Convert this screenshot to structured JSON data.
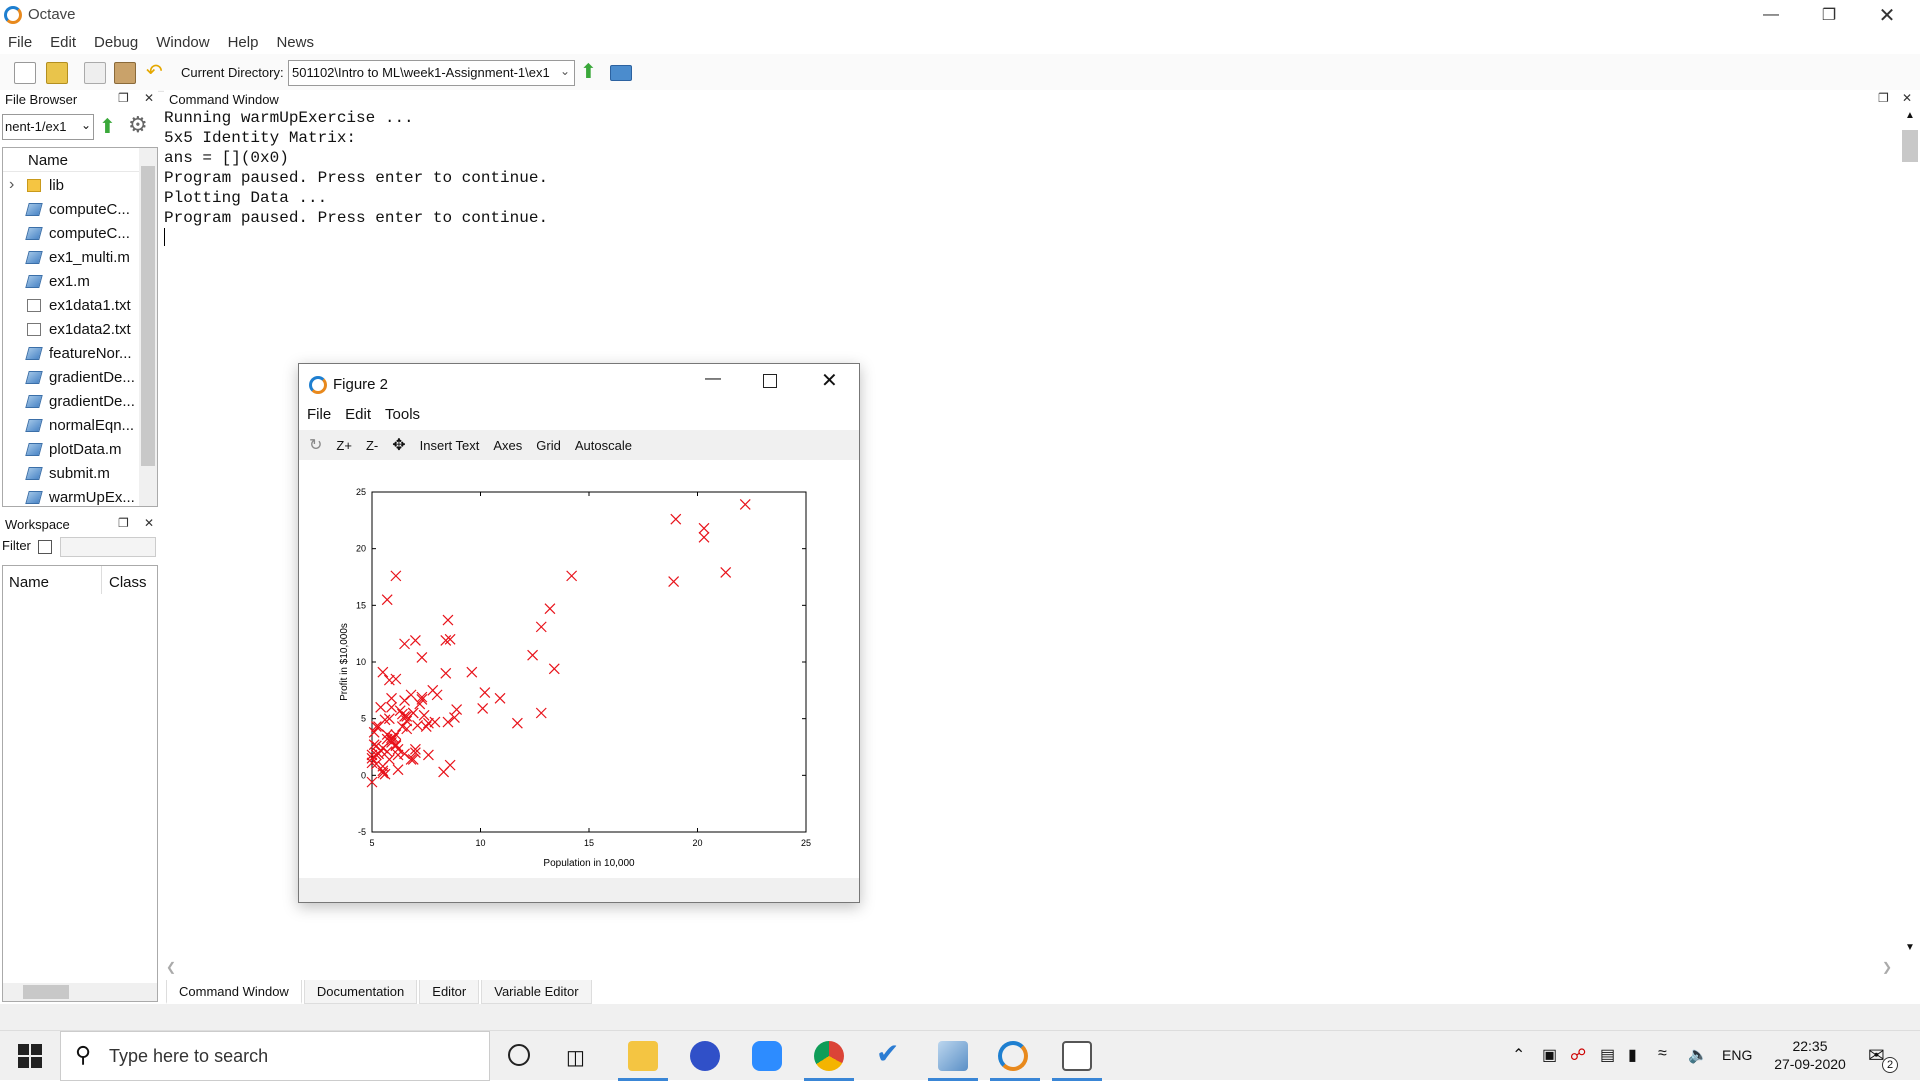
{
  "window": {
    "title": "Octave"
  },
  "menu": [
    "File",
    "Edit",
    "Debug",
    "Window",
    "Help",
    "News"
  ],
  "toolbar": {
    "current_directory_label": "Current Directory:",
    "current_directory": "501102\\Intro to ML\\week1-Assignment-1\\ex1"
  },
  "file_browser": {
    "title": "File Browser",
    "path": "nent-1/ex1",
    "column": "Name",
    "items": [
      {
        "name": "lib",
        "type": "folder"
      },
      {
        "name": "computeC...",
        "type": "m"
      },
      {
        "name": "computeC...",
        "type": "m"
      },
      {
        "name": "ex1_multi.m",
        "type": "m"
      },
      {
        "name": "ex1.m",
        "type": "m"
      },
      {
        "name": "ex1data1.txt",
        "type": "txt"
      },
      {
        "name": "ex1data2.txt",
        "type": "txt"
      },
      {
        "name": "featureNor...",
        "type": "m"
      },
      {
        "name": "gradientDe...",
        "type": "m"
      },
      {
        "name": "gradientDe...",
        "type": "m"
      },
      {
        "name": "normalEqn....",
        "type": "m"
      },
      {
        "name": "plotData.m",
        "type": "m"
      },
      {
        "name": "submit.m",
        "type": "m"
      },
      {
        "name": "warmUpEx...",
        "type": "m"
      }
    ]
  },
  "workspace": {
    "title": "Workspace",
    "filter_label": "Filter",
    "columns": [
      "Name",
      "Class"
    ]
  },
  "command_window": {
    "title": "Command Window",
    "lines": [
      "Running warmUpExercise ...",
      "5x5 Identity Matrix:",
      "ans = [](0x0)",
      "Program paused. Press enter to continue.",
      "Plotting Data ...",
      "Program paused. Press enter to continue."
    ]
  },
  "tabs": [
    "Command Window",
    "Documentation",
    "Editor",
    "Variable Editor"
  ],
  "figure": {
    "title": "Figure 2",
    "menu": [
      "File",
      "Edit",
      "Tools"
    ],
    "tools": [
      "Z+",
      "Z-",
      "Insert Text",
      "Axes",
      "Grid",
      "Autoscale"
    ]
  },
  "chart_data": {
    "type": "scatter",
    "xlabel": "Population in 10,000",
    "ylabel": "Profit in $10,000s",
    "xlim": [
      5,
      25
    ],
    "ylim": [
      -5,
      25
    ],
    "xticks": [
      5,
      10,
      15,
      20,
      25
    ],
    "yticks": [
      -5,
      0,
      5,
      10,
      15,
      20,
      25
    ],
    "marker": "x",
    "color": "#e8121a",
    "x": [
      6.1,
      5.5,
      8.5,
      7.0,
      5.9,
      8.4,
      7.5,
      8.6,
      6.5,
      5.1,
      6.0,
      5.7,
      14.2,
      5.7,
      6.8,
      6.4,
      5.4,
      5.2,
      5.1,
      6.6,
      6.9,
      5.8,
      5.8,
      6.5,
      6.2,
      5.7,
      5.5,
      5.9,
      18.9,
      12.8,
      10.9,
      13.2,
      6.6,
      5.4,
      6.1,
      5.3,
      12.4,
      7.3,
      6.3,
      7.2,
      5.2,
      5.3,
      7.3,
      7.1,
      7.3,
      5.9,
      7.0,
      8.0,
      5.0,
      6.9,
      5.2,
      20.3,
      22.2,
      19.0,
      20.3,
      21.3,
      9.6,
      11.7,
      6.4,
      7.4,
      5.2,
      5.9,
      8.8,
      7.0,
      8.6,
      6.1,
      12.8,
      6.1,
      5.0,
      5.2,
      6.6,
      7.6,
      5.0,
      13.4,
      5.7,
      5.6,
      6.2,
      5.6,
      5.9,
      5.0,
      5.5,
      5.3,
      6.5,
      5.5,
      8.5,
      7.6,
      6.9,
      5.8,
      6.1,
      8.3,
      8.4,
      6.5,
      7.9,
      10.2,
      5.5,
      6.2,
      6.8,
      8.9,
      10.1,
      7.8
    ],
    "y": [
      17.6,
      9.1,
      13.7,
      11.9,
      6.8,
      11.9,
      4.3,
      12.0,
      6.6,
      3.8,
      3.3,
      15.5,
      17.6,
      2.1,
      7.1,
      5.4,
      6.0,
      2.6,
      2.7,
      4.1,
      1.4,
      5.0,
      8.4,
      11.6,
      1.8,
      3.6,
      2.4,
      3.3,
      17.1,
      5.5,
      6.8,
      14.7,
      5.2,
      2.2,
      3.6,
      1.9,
      10.6,
      10.4,
      5.7,
      6.3,
      1.0,
      4.3,
      6.7,
      4.4,
      6.9,
      3.1,
      2.0,
      7.1,
      1.5,
      5.5,
      1.8,
      21.8,
      23.9,
      22.6,
      21.0,
      17.9,
      9.1,
      4.6,
      4.3,
      5.3,
      2.6,
      6.0,
      5.1,
      2.3,
      0.9,
      2.6,
      13.1,
      8.5,
      1.8,
      4.3,
      4.8,
      4.6,
      -0.6,
      9.4,
      3.2,
      0.1,
      2.3,
      4.9,
      2.9,
      1.1,
      0.4,
      1.9,
      5.2,
      0.8,
      4.7,
      1.8,
      5.5,
      1.4,
      2.7,
      0.3,
      9.0,
      1.9,
      4.7,
      7.3,
      0.2,
      0.5,
      1.4,
      5.8,
      5.9,
      7.5
    ]
  },
  "taskbar": {
    "search_placeholder": "Type here to search",
    "time": "22:35",
    "date": "27-09-2020",
    "lang": "ENG",
    "notifications": "2"
  }
}
